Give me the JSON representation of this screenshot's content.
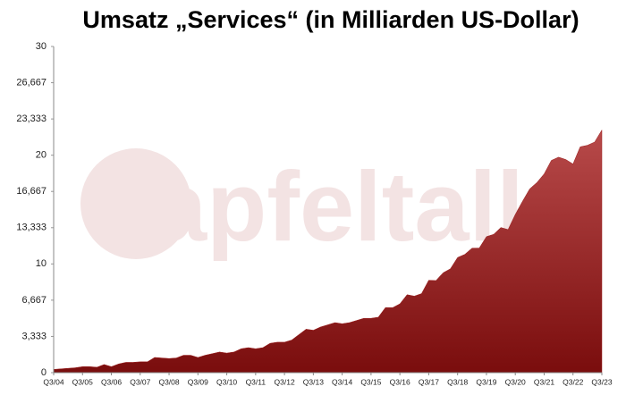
{
  "chart_data": {
    "type": "area",
    "title": "Umsatz „Services“ (in Milliarden US-Dollar)",
    "watermark": "apfeltalk",
    "color": "#9b1c1c",
    "categories": [
      "Q3/04",
      null,
      null,
      null,
      "Q3/05",
      null,
      null,
      null,
      "Q3/06",
      null,
      null,
      null,
      "Q3/07",
      null,
      null,
      null,
      "Q3/08",
      null,
      null,
      null,
      "Q3/09",
      null,
      null,
      null,
      "Q3/10",
      null,
      null,
      null,
      "Q3/11",
      null,
      null,
      null,
      "Q3/12",
      null,
      null,
      null,
      "Q3/13",
      null,
      null,
      null,
      "Q3/14",
      null,
      null,
      null,
      "Q3/15",
      null,
      null,
      null,
      "Q3/16",
      null,
      null,
      null,
      "Q3/17",
      null,
      null,
      null,
      "Q3/18",
      null,
      null,
      null,
      "Q3/19",
      null,
      null,
      null,
      "Q3/20",
      null,
      null,
      null,
      "Q3/21",
      null,
      null,
      null,
      "Q3/22",
      null,
      null,
      null,
      "Q3/23"
    ],
    "values": [
      0.3,
      0.35,
      0.4,
      0.45,
      0.55,
      0.55,
      0.5,
      0.75,
      0.55,
      0.8,
      0.95,
      0.95,
      1.0,
      1.0,
      1.4,
      1.35,
      1.3,
      1.35,
      1.6,
      1.6,
      1.4,
      1.6,
      1.75,
      1.9,
      1.8,
      1.9,
      2.2,
      2.3,
      2.2,
      2.3,
      2.7,
      2.8,
      2.8,
      3.0,
      3.5,
      4.0,
      3.9,
      4.2,
      4.4,
      4.6,
      4.5,
      4.6,
      4.8,
      5.0,
      5.0,
      5.1,
      5.99,
      5.98,
      6.33,
      7.17,
      7.04,
      7.27,
      8.5,
      8.47,
      9.19,
      9.55,
      10.59,
      10.88,
      11.45,
      11.46,
      12.51,
      12.72,
      13.35,
      13.16,
      14.55,
      15.76,
      16.9,
      17.49,
      18.28,
      19.52,
      19.82,
      19.6,
      19.19,
      20.77,
      20.91,
      21.21,
      22.31
    ],
    "ylim": [
      0,
      30
    ],
    "yticks": [
      0,
      {
        "value": 3.333,
        "label": "3,333"
      },
      {
        "value": 6.667,
        "label": "6,667"
      },
      10,
      {
        "value": 13.333,
        "label": "13,333"
      },
      {
        "value": 16.667,
        "label": "16,667"
      },
      20,
      {
        "value": 23.333,
        "label": "23,333"
      },
      {
        "value": 26.667,
        "label": "26,667"
      },
      30
    ],
    "grid": false
  }
}
